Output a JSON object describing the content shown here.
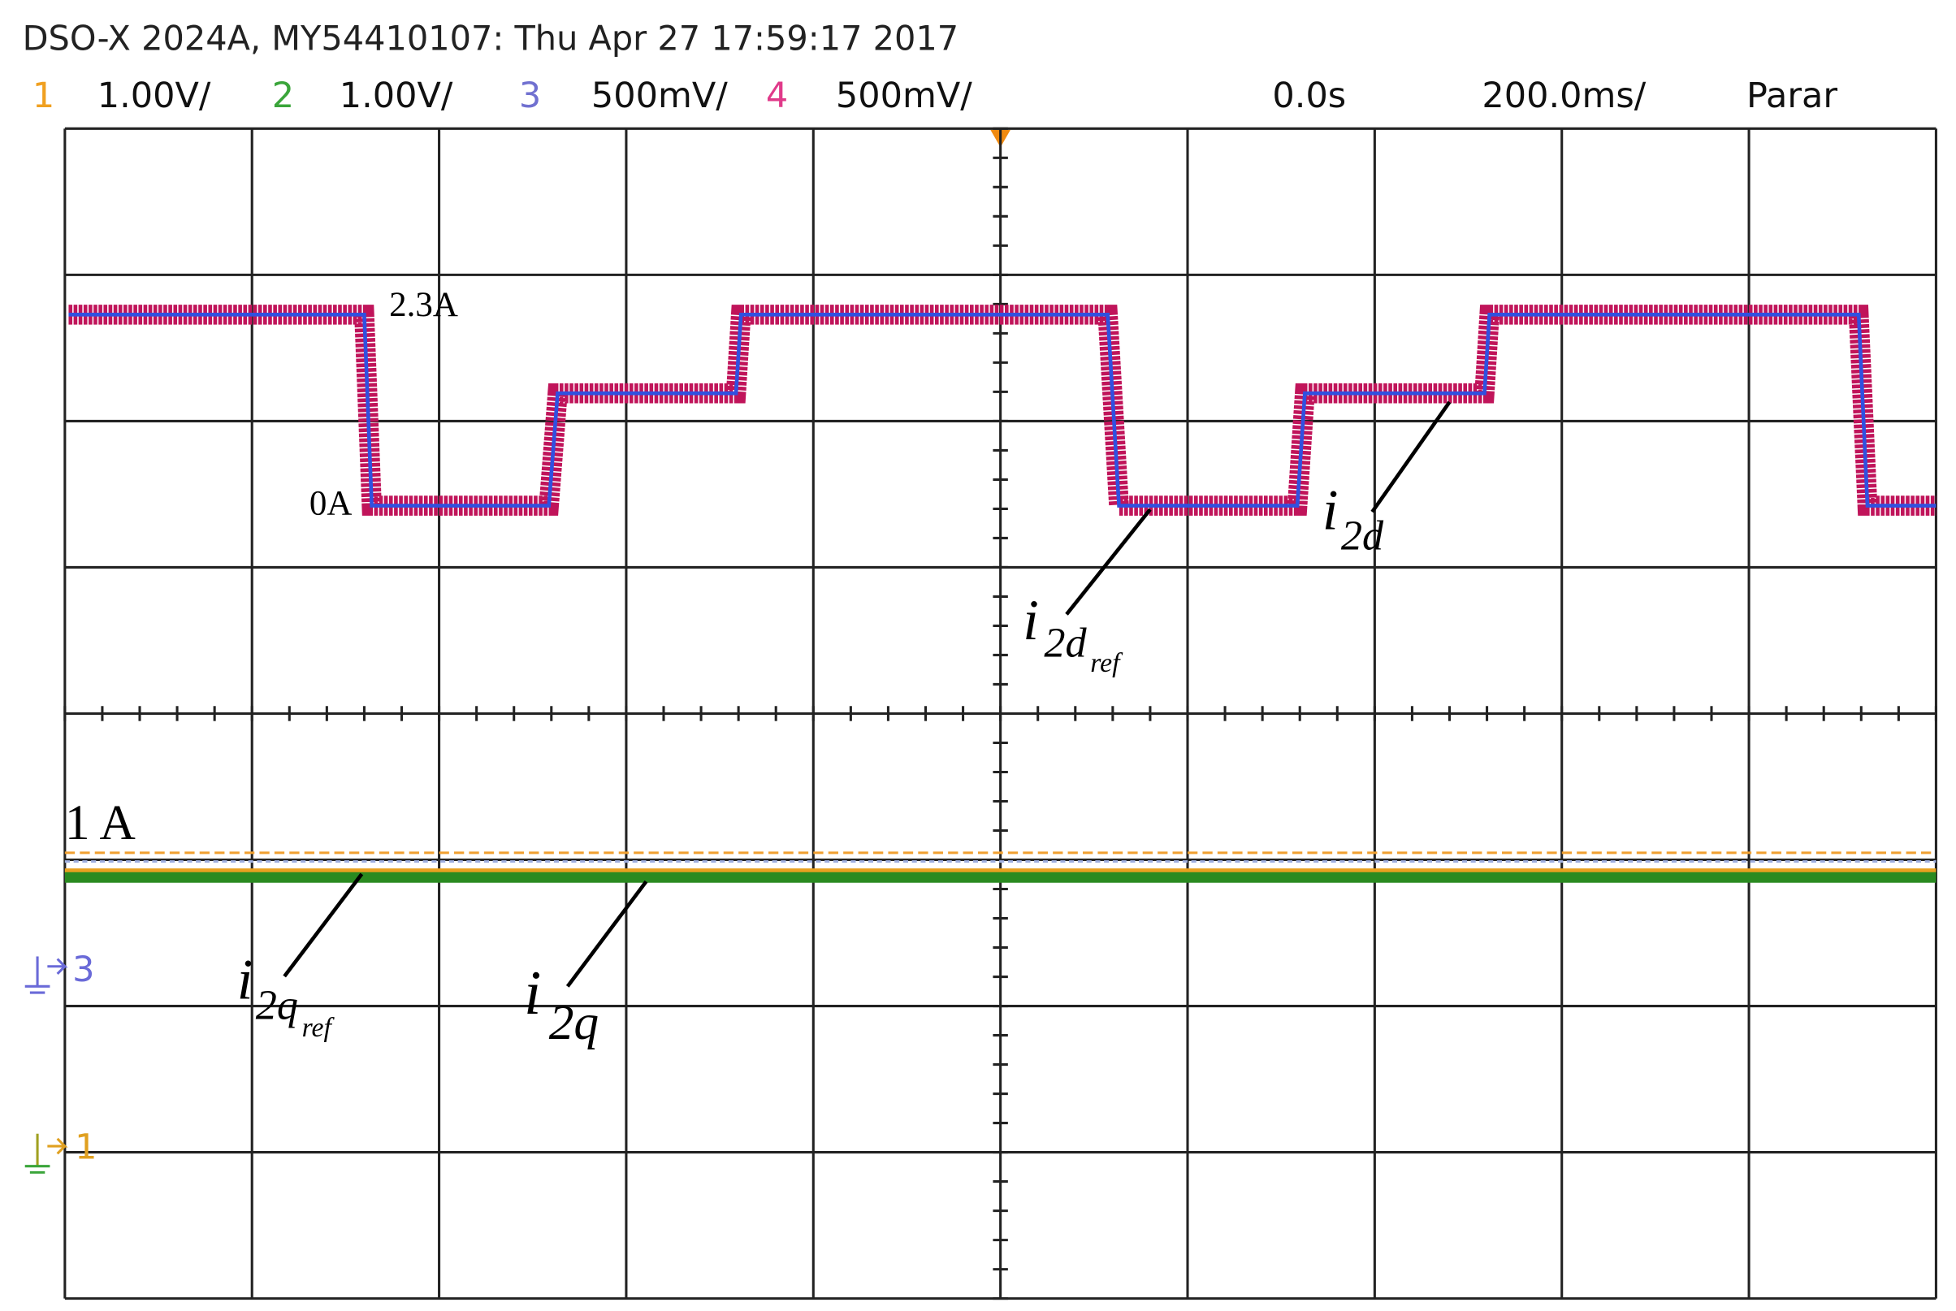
{
  "header": {
    "title": "DSO-X 2024A, MY54410107: Thu Apr 27 17:59:17 2017",
    "channels": [
      {
        "number": "1",
        "scale": "1.00V/"
      },
      {
        "number": "2",
        "scale": "1.00V/"
      },
      {
        "number": "3",
        "scale": "500mV/"
      },
      {
        "number": "4",
        "scale": "500mV/"
      }
    ],
    "time_offset": "0.0s",
    "time_scale": "200.0ms/",
    "status": "Parar"
  },
  "annotations": {
    "high_level": "2.3A",
    "low_level": "0A",
    "scale_level": "1 A",
    "i2d_ref": {
      "main": "i",
      "sub": "2d",
      "subsub": "ref"
    },
    "i2d": {
      "main": "i",
      "sub": "2d"
    },
    "i2q_ref": {
      "main": "i",
      "sub": "2q",
      "subsub": "ref"
    },
    "i2q": {
      "main": "i",
      "sub": "2q"
    }
  },
  "ground_markers": [
    "3",
    "1"
  ]
}
